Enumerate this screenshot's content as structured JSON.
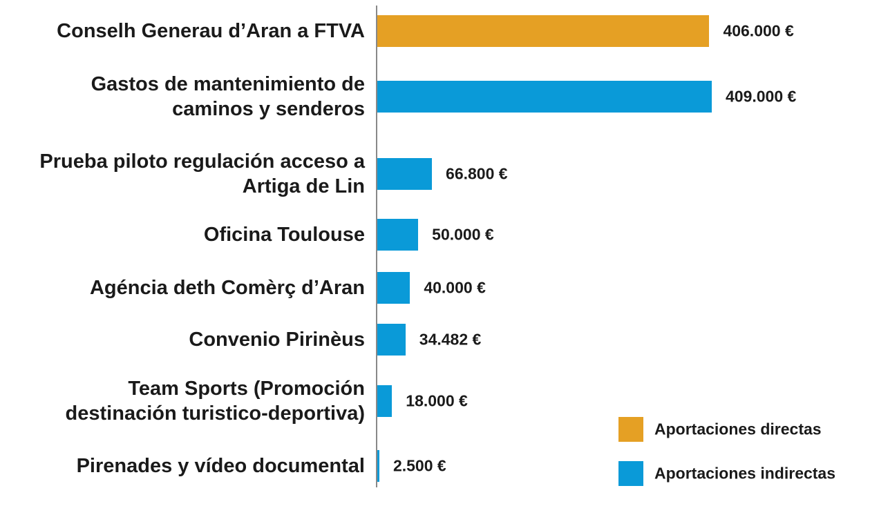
{
  "chart_data": {
    "type": "barh",
    "categories": [
      "Conselh Generau d’Aran a FTVA",
      "Gastos de mantenimiento de\ncaminos y senderos",
      "Prueba piloto regulación acceso a\nArtiga de Lin",
      "Oficina Toulouse",
      "Agéncia deth Comèrç d’Aran",
      "Convenio Pirinèus",
      "Team Sports (Promoción\ndestinación turistico-deportiva)",
      "Pirenades y vídeo documental"
    ],
    "series": [
      {
        "name": "Aportaciones directas",
        "color": "#e5a024",
        "values": [
          406000,
          null,
          null,
          null,
          null,
          null,
          null,
          null
        ],
        "value_labels": [
          "406.000 €",
          null,
          null,
          null,
          null,
          null,
          null,
          null
        ]
      },
      {
        "name": "Aportaciones indirectas",
        "color": "#0a9ad8",
        "values": [
          null,
          409000,
          66800,
          50000,
          40000,
          34482,
          18000,
          2500
        ],
        "value_labels": [
          null,
          "409.000 €",
          "66.800 €",
          "50.000 €",
          "40.000 €",
          "34.482 €",
          "18.000 €",
          "2.500 €"
        ]
      }
    ],
    "legend": "lower right"
  }
}
